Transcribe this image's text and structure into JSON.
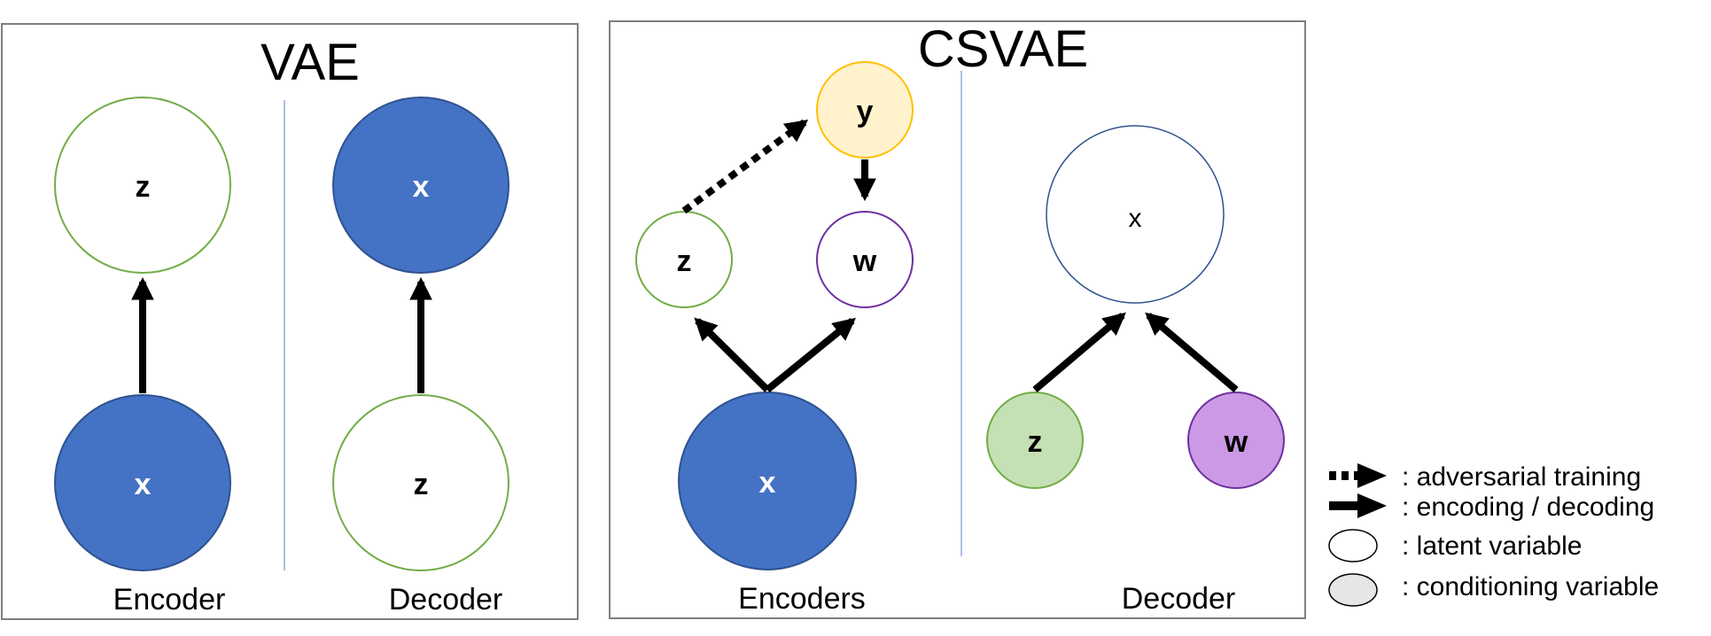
{
  "vae": {
    "title": "VAE",
    "encoder_label": "Encoder",
    "decoder_label": "Decoder",
    "encoder_top_node": "z",
    "encoder_bottom_node": "x",
    "decoder_top_node": "x",
    "decoder_bottom_node": "z"
  },
  "csvae": {
    "title": "CSVAE",
    "encoders_label": "Encoders",
    "decoder_label": "Decoder",
    "enc_y_node": "y",
    "enc_z_node": "z",
    "enc_w_node": "w",
    "enc_x_node": "x",
    "dec_x_node": "x",
    "dec_z_node": "z",
    "dec_w_node": "w"
  },
  "legend": {
    "adversarial": ": adversarial training",
    "encoding": ": encoding / decoding",
    "latent": ": latent variable",
    "conditioning": ": conditioning variable"
  },
  "colors": {
    "observed_fill": "#4472c4",
    "observed_stroke": "#2f528f",
    "latent_stroke_green": "#70ad47",
    "y_fill": "#fff2cc",
    "y_stroke": "#ffc000",
    "w_stroke": "#7030a0",
    "z_cond_fill": "#c5e0b4",
    "w_cond_fill": "#cc99e6",
    "divider": "#8faadc",
    "panel_border": "#7f7f7f",
    "legend_gray": "#e7e6e6"
  }
}
